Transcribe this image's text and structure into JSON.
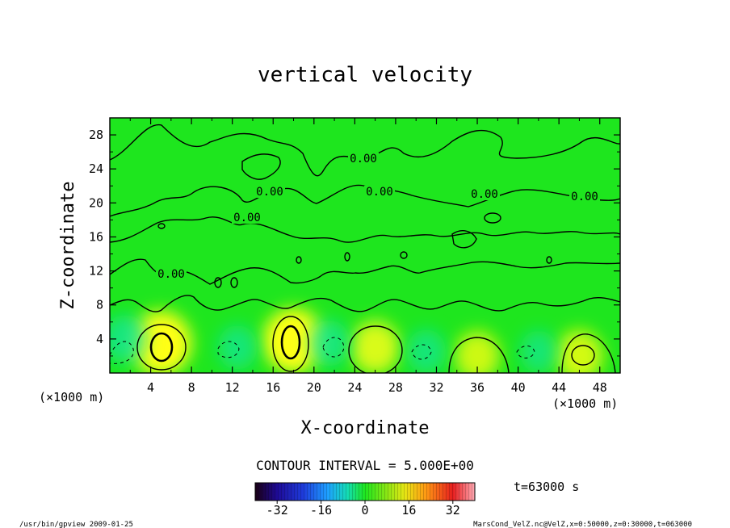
{
  "chart_data": {
    "type": "heatmap",
    "title": "vertical velocity",
    "xlabel": "X-coordinate",
    "ylabel": "Z-coordinate",
    "x_unit": "(×1000 m)",
    "y_unit": "(×1000 m)",
    "xlim": [
      0,
      50
    ],
    "ylim": [
      0,
      30
    ],
    "x_ticks": [
      "4",
      "8",
      "12",
      "16",
      "20",
      "24",
      "28",
      "32",
      "36",
      "40",
      "44",
      "48"
    ],
    "y_ticks": [
      "4",
      "8",
      "12",
      "16",
      "20",
      "24",
      "28"
    ],
    "contour_interval_text": "CONTOUR INTERVAL = 5.000E+00",
    "contour_labels": [
      "0.00",
      "0.00",
      "0.00",
      "0.00",
      "0.00",
      "0.00",
      "0.00"
    ],
    "cells": [
      {
        "x": 5.0,
        "z": 3.5,
        "value": 16
      },
      {
        "x": 18.0,
        "z": 3.8,
        "value": 16
      },
      {
        "x": 26.0,
        "z": 3.0,
        "value": 10
      },
      {
        "x": 36.0,
        "z": 2.0,
        "value": 8
      },
      {
        "x": 46.0,
        "z": 2.0,
        "value": 9
      },
      {
        "x": 1.5,
        "z": 4.0,
        "value": -7
      },
      {
        "x": 12.5,
        "z": 3.0,
        "value": -5
      },
      {
        "x": 21.5,
        "z": 3.5,
        "value": -6
      },
      {
        "x": 31.0,
        "z": 2.5,
        "value": -5
      },
      {
        "x": 42.0,
        "z": 2.5,
        "value": -4
      }
    ],
    "colorbar": {
      "min": -40,
      "max": 40,
      "tick_labels": [
        "-32",
        "-16",
        "0",
        "16",
        "32"
      ],
      "tick_values": [
        -32,
        -16,
        0,
        16,
        32
      ]
    },
    "time_label": "t=63000 s"
  },
  "footer": {
    "left": "/usr/bin/gpview   2009-01-25",
    "right": "MarsCond_VelZ.nc@VelZ,x=0:50000,z=0:30000,t=063000"
  },
  "colors": {
    "field_background": "#1ee61e",
    "positive": "#ffff14",
    "negative": "#14e6a0",
    "contour": "#000000"
  }
}
